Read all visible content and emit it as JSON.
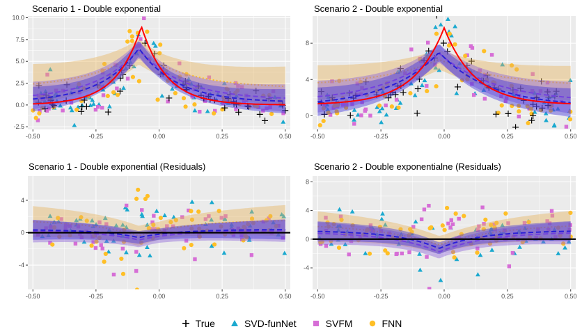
{
  "colors": {
    "true": "#000000",
    "svd": "#1ba9cf",
    "svfm": "#d66ed6",
    "fnn": "#ffbf26",
    "true_curve": "#ff0000",
    "svd_band": "#3b2fdb",
    "svfm_band": "#8a5fd8",
    "fnn_band": "#e6b25a",
    "panel_bg": "#ebebeb",
    "grid": "#ffffff"
  },
  "legend": {
    "items": [
      {
        "key": "true",
        "label": "True",
        "shape": "plus"
      },
      {
        "key": "svd",
        "label": "SVD-funNet",
        "shape": "triangle"
      },
      {
        "key": "svfm",
        "label": "SVFM",
        "shape": "square"
      },
      {
        "key": "fnn",
        "label": "FNN",
        "shape": "circle"
      }
    ]
  },
  "chart_data": [
    {
      "id": "p1",
      "type": "scatter",
      "title": "Scenario 1 - Double exponential",
      "xlabel": "",
      "ylabel": "",
      "xlim": [
        -0.52,
        0.52
      ],
      "ylim": [
        -2.8,
        10.2
      ],
      "xticks": [
        -0.5,
        -0.25,
        0,
        0.25,
        0.5
      ],
      "xtick_labels": [
        "-0.50",
        "-0.25",
        "0.00",
        "0.25",
        "0.50"
      ],
      "yticks": [
        -2.5,
        0,
        2.5,
        5,
        7.5,
        10
      ],
      "ytick_labels": [
        "-2.5",
        "0.0",
        "2.5",
        "5.0",
        "7.5",
        "10.0"
      ],
      "grid": true,
      "true_curve": {
        "a": 9.0,
        "b": 0.0,
        "c": -0.07,
        "s": 0.1
      },
      "fits": {
        "svd": {
          "a": 6.2,
          "b": 0.3,
          "c": -0.08,
          "s": 0.15,
          "band": 0.8
        },
        "svfm": {
          "a": 5.8,
          "b": 0.6,
          "c": -0.08,
          "s": 0.17,
          "band": 0.9
        },
        "fnn": {
          "a": 4.2,
          "b": 1.9,
          "c": -0.08,
          "s": 0.2,
          "band": 1.3
        }
      },
      "scatter": {
        "seed": 11,
        "noise": 1.6
      },
      "hline": null
    },
    {
      "id": "p2",
      "type": "scatter",
      "title": "Scenario 2 - Double exponential",
      "xlabel": "",
      "ylabel": "",
      "xlim": [
        -0.52,
        0.52
      ],
      "ylim": [
        -1.5,
        11.0
      ],
      "xticks": [
        -0.5,
        -0.25,
        0,
        0.25,
        0.5
      ],
      "xtick_labels": [
        "-0.50",
        "-0.25",
        "0.00",
        "0.25",
        "0.50"
      ],
      "yticks": [
        0,
        4,
        8
      ],
      "ytick_labels": [
        "0",
        "4",
        "8"
      ],
      "grid": true,
      "true_curve": {
        "a": 8.5,
        "b": 1.2,
        "c": 0.0,
        "s": 0.12
      },
      "fits": {
        "svd": {
          "a": 6.0,
          "b": 1.0,
          "c": -0.02,
          "s": 0.2,
          "band": 0.9
        },
        "svfm": {
          "a": 5.4,
          "b": 1.5,
          "c": -0.02,
          "s": 0.22,
          "band": 1.0
        },
        "fnn": {
          "a": 3.0,
          "b": 3.2,
          "c": -0.02,
          "s": 0.25,
          "band": 1.1
        }
      },
      "scatter": {
        "seed": 23,
        "noise": 1.8
      },
      "hline": null
    },
    {
      "id": "p3",
      "type": "scatter",
      "title": "Scenario 1 - Double exponential (Residuals)",
      "xlabel": "",
      "ylabel": "",
      "xlim": [
        -0.52,
        0.52
      ],
      "ylim": [
        -7.0,
        7.0
      ],
      "xticks": [
        -0.5,
        -0.25,
        0,
        0.25,
        0.5
      ],
      "xtick_labels": [
        "-0.50",
        "-0.25",
        "0.00",
        "0.25",
        "0.50"
      ],
      "yticks": [
        -4,
        0,
        4
      ],
      "ytick_labels": [
        "-4",
        "0",
        "4"
      ],
      "grid": true,
      "true_curve": null,
      "fits": {
        "svd": {
          "a": -1.0,
          "b": 0.4,
          "c": -0.08,
          "s": 0.15,
          "band": 0.7
        },
        "svfm": {
          "a": -1.2,
          "b": 0.3,
          "c": -0.08,
          "s": 0.17,
          "band": 0.8
        },
        "fnn": {
          "a": -2.0,
          "b": 1.6,
          "c": -0.08,
          "s": 0.2,
          "band": 1.1
        }
      },
      "scatter": {
        "seed": 37,
        "noise": 2.0
      },
      "hline": 0
    },
    {
      "id": "p4",
      "type": "scatter",
      "title": "Scenario 2 - Double exponentialne (Residuals)",
      "xlabel": "",
      "ylabel": "",
      "xlim": [
        -0.52,
        0.52
      ],
      "ylim": [
        -7.0,
        8.8
      ],
      "xticks": [
        -0.5,
        -0.25,
        0,
        0.25,
        0.5
      ],
      "xtick_labels": [
        "-0.50",
        "-0.25",
        "0.00",
        "0.25",
        "0.50"
      ],
      "yticks": [
        -4,
        0,
        4,
        8
      ],
      "ytick_labels": [
        "-4",
        "0",
        "4",
        "8"
      ],
      "grid": true,
      "true_curve": null,
      "fits": {
        "svd": {
          "a": -2.5,
          "b": 1.2,
          "c": -0.02,
          "s": 0.16,
          "band": 0.8
        },
        "svfm": {
          "a": -2.8,
          "b": 1.0,
          "c": -0.02,
          "s": 0.18,
          "band": 0.9
        },
        "fnn": {
          "a": -3.0,
          "b": 2.2,
          "c": -0.02,
          "s": 0.25,
          "band": 1.2
        }
      },
      "scatter": {
        "seed": 53,
        "noise": 2.2
      },
      "hline": 0
    }
  ]
}
